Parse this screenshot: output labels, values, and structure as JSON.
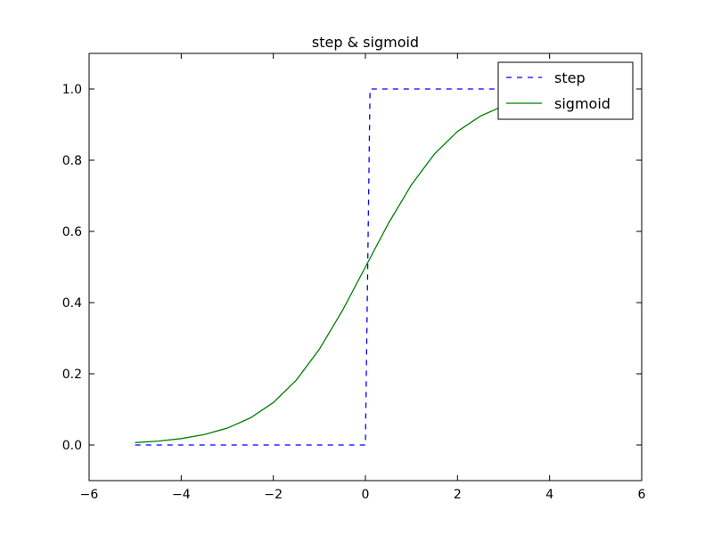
{
  "chart_data": {
    "type": "line",
    "title": "step & sigmoid",
    "xlabel": "",
    "ylabel": "",
    "xlim": [
      -6,
      6
    ],
    "ylim": [
      -0.1,
      1.1
    ],
    "x_ticks": [
      -6,
      -4,
      -2,
      0,
      2,
      4,
      6
    ],
    "x_tick_labels": [
      "−6",
      "−4",
      "−2",
      "0",
      "2",
      "4",
      "6"
    ],
    "y_ticks": [
      0.0,
      0.2,
      0.4,
      0.6,
      0.8,
      1.0
    ],
    "y_tick_labels": [
      "0.0",
      "0.2",
      "0.4",
      "0.6",
      "0.8",
      "1.0"
    ],
    "grid": false,
    "legend_position": "top-right",
    "x_range": [
      -5,
      5
    ],
    "series": [
      {
        "name": "step",
        "style": "dashed",
        "color": "#0000ff",
        "x": [
          -5.0,
          0.0,
          0.1,
          5.0
        ],
        "y": [
          0,
          0,
          1,
          1
        ]
      },
      {
        "name": "sigmoid",
        "style": "solid",
        "color": "#008000",
        "x": [
          -5.0,
          -4.5,
          -4.0,
          -3.5,
          -3.0,
          -2.5,
          -2.0,
          -1.5,
          -1.0,
          -0.5,
          0.0,
          0.5,
          1.0,
          1.5,
          2.0,
          2.5,
          3.0,
          3.5,
          4.0,
          4.5,
          5.0
        ],
        "y": [
          0.0067,
          0.011,
          0.018,
          0.0293,
          0.0474,
          0.0759,
          0.1192,
          0.1824,
          0.2689,
          0.3775,
          0.5,
          0.6225,
          0.7311,
          0.8176,
          0.8808,
          0.9241,
          0.9526,
          0.9707,
          0.982,
          0.989,
          0.9933
        ]
      }
    ]
  }
}
